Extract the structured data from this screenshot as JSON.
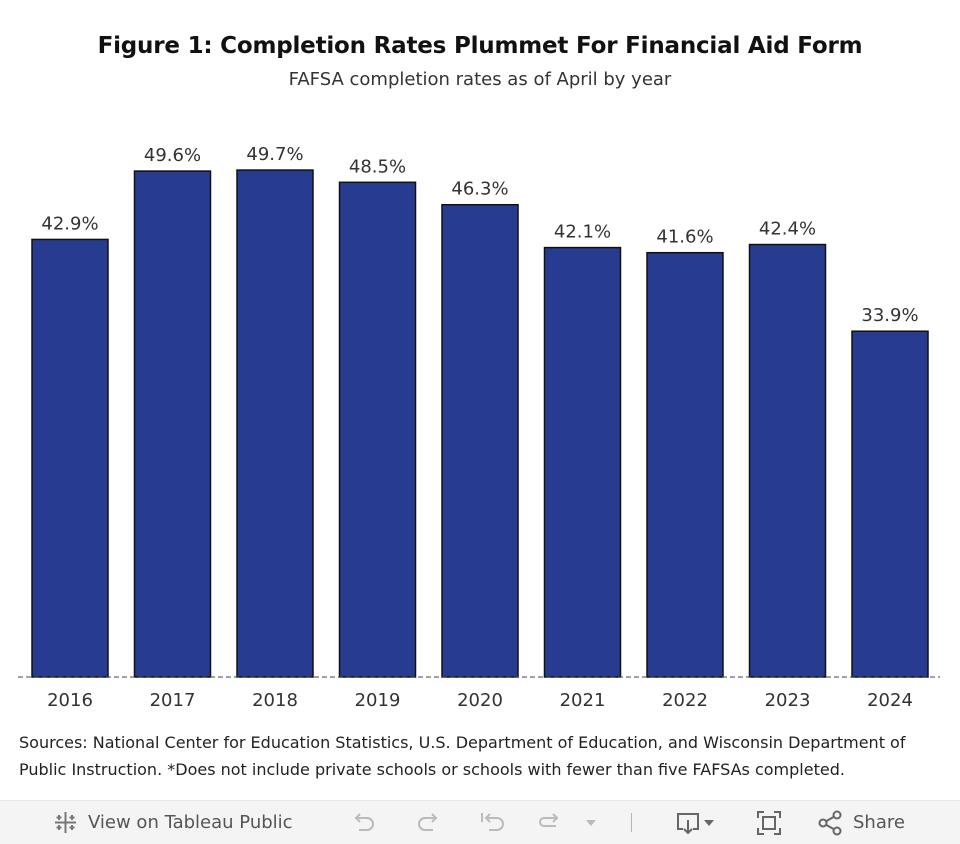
{
  "chart_data": {
    "type": "bar",
    "title": "Figure 1: Completion Rates Plummet For Financial Aid Form",
    "subtitle": "FAFSA completion rates as of April by year",
    "categories": [
      "2016",
      "2017",
      "2018",
      "2019",
      "2020",
      "2021",
      "2022",
      "2023",
      "2024"
    ],
    "values": [
      42.9,
      49.6,
      49.7,
      48.5,
      46.3,
      42.1,
      41.6,
      42.4,
      33.9
    ],
    "labels": [
      "42.9%",
      "49.6%",
      "49.7%",
      "48.5%",
      "46.3%",
      "42.1%",
      "41.6%",
      "42.4%",
      "33.9%"
    ],
    "xlabel": "",
    "ylabel": "",
    "ylim": [
      0,
      51
    ],
    "grid": false,
    "bar_color": "#273c91"
  },
  "footer": {
    "sources": "Sources: National Center for Education Statistics, U.S. Department of Education, and Wisconsin Department of Public Instruction. *Does not include private schools or schools with fewer than five FAFSAs completed."
  },
  "toolbar": {
    "view_label": "View on Tableau Public",
    "share_label": "Share"
  }
}
